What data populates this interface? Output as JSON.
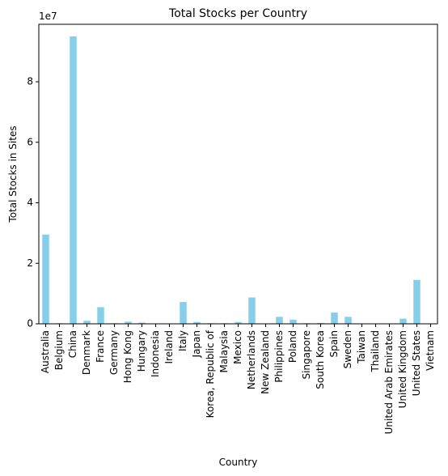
{
  "chart_data": {
    "type": "bar",
    "title": "Total Stocks per Country",
    "xlabel": "Country",
    "ylabel": "Total Stocks in Sites",
    "y_offset_label": "1e7",
    "y_ticks": [
      0,
      2,
      4,
      6,
      8
    ],
    "ylim": [
      0,
      9.9
    ],
    "grid": false,
    "legend": "none",
    "bar_color": "#87CEEB",
    "categories": [
      "Australia",
      "Belgium",
      "China",
      "Denmark",
      "France",
      "Germany",
      "Hong Kong",
      "Hungary",
      "Indonesia",
      "Ireland",
      "Italy",
      "Japan",
      "Korea, Republic of",
      "Malaysia",
      "Mexico",
      "Netherlands",
      "New Zealand",
      "Philippines",
      "Poland",
      "Singapore",
      "South Korea",
      "Spain",
      "Sweden",
      "Taiwan",
      "Thailand",
      "United Arab Emirates",
      "United Kingdom",
      "United States",
      "Vietnam"
    ],
    "values": [
      2.95,
      0.02,
      9.5,
      0.1,
      0.55,
      0.02,
      0.07,
      0.04,
      0.01,
      0.01,
      0.72,
      0.06,
      0.02,
      0.02,
      0.06,
      0.87,
      0.01,
      0.23,
      0.14,
      0.02,
      0.03,
      0.37,
      0.23,
      0.01,
      0.01,
      0.01,
      0.17,
      1.45,
      0.01
    ]
  }
}
